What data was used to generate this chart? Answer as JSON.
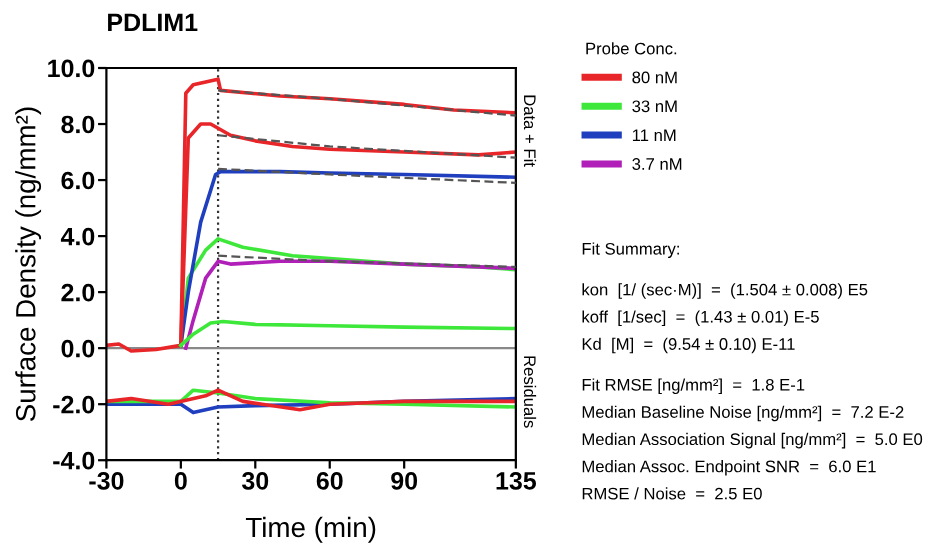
{
  "chart_data": {
    "type": "line",
    "title": "PDLIM1",
    "xlabel": "Time (min)",
    "ylabel": "Surface Density (ng/mm²)",
    "legend_title": "Probe Conc.",
    "xlim": [
      -30,
      135
    ],
    "xticks": [
      -30,
      0,
      30,
      60,
      90,
      135
    ],
    "ylim": [
      -4,
      10
    ],
    "yticks": [
      {
        "value": -4,
        "label": "-4.0"
      },
      {
        "value": -2,
        "label": "-2.0"
      },
      {
        "value": 0,
        "label": "0.0"
      },
      {
        "value": 2,
        "label": "2.0"
      },
      {
        "value": 4,
        "label": "4.0"
      },
      {
        "value": 6,
        "label": "6.0"
      },
      {
        "value": 8,
        "label": "8.0"
      },
      {
        "value": 10,
        "label": "10.0"
      }
    ],
    "grid": false,
    "legend": "right",
    "line_style": "solid",
    "marker": "none",
    "ref_lines": [
      {
        "axis": "x",
        "value": 15,
        "label": null,
        "color": "#333333",
        "line_style": "dotted"
      },
      {
        "axis": "y",
        "value": 0,
        "label": null,
        "color": "#888888",
        "line_style": "solid"
      }
    ],
    "series": [
      {
        "name": "80 nM",
        "color": "#e8262a",
        "x": [
          -30,
          -25,
          -20,
          -10,
          0,
          2,
          5,
          10,
          15,
          16,
          40,
          60,
          90,
          110,
          135
        ],
        "values": [
          0.1,
          0.15,
          -0.1,
          -0.05,
          0.1,
          9.1,
          9.4,
          9.5,
          9.6,
          9.2,
          9.0,
          8.9,
          8.7,
          8.5,
          8.4
        ]
      },
      {
        "name": "33 nM",
        "color": "#3ee83a",
        "x": [
          0,
          3,
          10,
          15,
          25,
          45,
          60,
          90,
          120,
          135
        ],
        "values": [
          0.1,
          2.5,
          3.5,
          3.9,
          3.6,
          3.3,
          3.2,
          3.0,
          2.9,
          2.8
        ]
      },
      {
        "name": "11 nM",
        "color": "#1f3fbf",
        "x": [
          0,
          3,
          8,
          14,
          16,
          40,
          60,
          90,
          135
        ],
        "values": [
          0.1,
          2.0,
          4.5,
          6.2,
          6.3,
          6.3,
          6.25,
          6.2,
          6.1
        ]
      },
      {
        "name": "3.7 nM",
        "color": "#b020b8",
        "x": [
          2,
          5,
          10,
          15,
          20,
          40,
          60,
          90,
          120,
          135
        ],
        "values": [
          0.0,
          1.0,
          2.5,
          3.1,
          3.0,
          3.1,
          3.1,
          3.0,
          2.9,
          2.85
        ]
      },
      {
        "color": "#e8262a",
        "x": [
          0,
          3,
          8,
          12,
          20,
          30,
          45,
          60,
          90,
          120,
          135
        ],
        "values": [
          0.1,
          7.5,
          8.0,
          8.0,
          7.6,
          7.4,
          7.2,
          7.1,
          7.0,
          6.9,
          7.0
        ]
      },
      {
        "color": "#3ee83a",
        "x": [
          0,
          5,
          12,
          17,
          30,
          60,
          90,
          135
        ],
        "values": [
          0.1,
          0.5,
          0.9,
          0.95,
          0.85,
          0.8,
          0.75,
          0.7
        ]
      },
      {
        "color": "#555555",
        "line_style": "dashed",
        "x": [
          15,
          60,
          135
        ],
        "values": [
          9.2,
          8.9,
          8.3
        ]
      },
      {
        "color": "#555555",
        "line_style": "dashed",
        "x": [
          15,
          60,
          135
        ],
        "values": [
          7.6,
          7.2,
          6.8
        ]
      },
      {
        "color": "#555555",
        "line_style": "dashed",
        "x": [
          15,
          60,
          135
        ],
        "values": [
          6.4,
          6.2,
          5.9
        ]
      },
      {
        "color": "#555555",
        "line_style": "dashed",
        "x": [
          15,
          60,
          135
        ],
        "values": [
          3.3,
          3.1,
          2.9
        ]
      },
      {
        "color": "#1f3fbf",
        "x": [
          -30,
          -10,
          0,
          5,
          15,
          30,
          60,
          90,
          135
        ],
        "values": [
          -2.0,
          -2.0,
          -2.0,
          -2.3,
          -2.1,
          -2.05,
          -2.0,
          -1.9,
          -1.8
        ]
      },
      {
        "color": "#3ee83a",
        "x": [
          -30,
          -10,
          0,
          5,
          15,
          30,
          60,
          90,
          135
        ],
        "values": [
          -1.9,
          -1.9,
          -1.9,
          -1.5,
          -1.6,
          -1.8,
          -1.95,
          -2.0,
          -2.1
        ]
      },
      {
        "color": "#e8262a",
        "x": [
          -30,
          -20,
          -5,
          10,
          15,
          25,
          48,
          60,
          90,
          135
        ],
        "values": [
          -1.9,
          -1.8,
          -2.0,
          -1.7,
          -1.5,
          -1.9,
          -2.2,
          -2.0,
          -1.9,
          -1.9
        ]
      }
    ],
    "annotations": [
      "Data + Fit",
      "Residuals",
      "Fit Summary:",
      "kon  [1/ (sec·M)]  =  (1.504 ± 0.008) E5",
      "koff  [1/sec]  =  (1.43 ± 0.01) E-5",
      "Kd  [M]  =  (9.54 ± 0.10) E-11",
      "Fit RMSE [ng/mm²]  =  1.8 E-1",
      "Median Baseline Noise [ng/mm²]  =  7.2 E-2",
      "Median Association Signal [ng/mm²]  =  5.0 E0",
      "Median Assoc. Endpoint SNR  =  6.0 E1",
      "RMSE / Noise  =  2.5 E0"
    ]
  }
}
